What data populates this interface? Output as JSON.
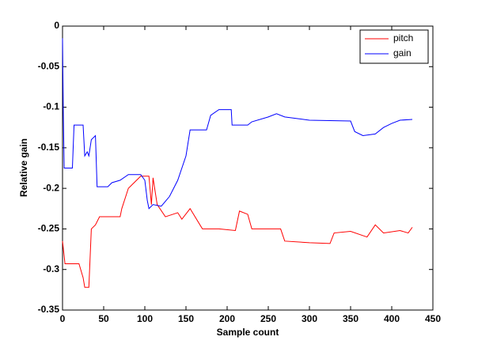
{
  "chart_data": {
    "type": "line",
    "xlabel": "Sample count",
    "ylabel": "Relative gain",
    "xlim": [
      0,
      450
    ],
    "xticks": [
      0,
      50,
      100,
      150,
      200,
      250,
      300,
      350,
      400,
      450
    ],
    "ylim": [
      -0.35,
      0
    ],
    "yticks": [
      -0.35,
      -0.3,
      -0.25,
      -0.2,
      -0.15,
      -0.1,
      -0.05,
      0
    ],
    "legend": "upper right",
    "series": [
      {
        "name": "pitch",
        "color": "#ff0000",
        "x": [
          0,
          3,
          20,
          25,
          27,
          32,
          35,
          40,
          45,
          70,
          72,
          80,
          85,
          90,
          95,
          105,
          108,
          110,
          115,
          125,
          140,
          145,
          155,
          170,
          190,
          210,
          215,
          225,
          230,
          265,
          270,
          300,
          325,
          330,
          350,
          370,
          380,
          390,
          410,
          420,
          425
        ],
        "values": [
          -0.265,
          -0.293,
          -0.293,
          -0.31,
          -0.322,
          -0.322,
          -0.25,
          -0.245,
          -0.235,
          -0.235,
          -0.225,
          -0.2,
          -0.195,
          -0.19,
          -0.185,
          -0.185,
          -0.22,
          -0.187,
          -0.22,
          -0.235,
          -0.23,
          -0.238,
          -0.225,
          -0.25,
          -0.25,
          -0.252,
          -0.228,
          -0.232,
          -0.25,
          -0.25,
          -0.265,
          -0.267,
          -0.268,
          -0.255,
          -0.253,
          -0.26,
          -0.245,
          -0.255,
          -0.252,
          -0.255,
          -0.248
        ]
      },
      {
        "name": "gain",
        "color": "#0000ff",
        "x": [
          0,
          1,
          2,
          12,
          14,
          25,
          27,
          30,
          32,
          35,
          40,
          42,
          55,
          60,
          70,
          80,
          95,
          100,
          103,
          105,
          110,
          120,
          130,
          140,
          150,
          155,
          175,
          180,
          190,
          205,
          206,
          225,
          230,
          250,
          260,
          270,
          300,
          350,
          355,
          365,
          380,
          390,
          400,
          410,
          425
        ],
        "values": [
          -0.015,
          -0.11,
          -0.175,
          -0.175,
          -0.122,
          -0.122,
          -0.16,
          -0.155,
          -0.16,
          -0.14,
          -0.135,
          -0.198,
          -0.198,
          -0.193,
          -0.19,
          -0.183,
          -0.183,
          -0.19,
          -0.215,
          -0.225,
          -0.22,
          -0.222,
          -0.21,
          -0.19,
          -0.16,
          -0.128,
          -0.128,
          -0.11,
          -0.103,
          -0.103,
          -0.122,
          -0.122,
          -0.118,
          -0.112,
          -0.108,
          -0.112,
          -0.116,
          -0.117,
          -0.13,
          -0.135,
          -0.133,
          -0.125,
          -0.12,
          -0.116,
          -0.115
        ]
      }
    ]
  }
}
